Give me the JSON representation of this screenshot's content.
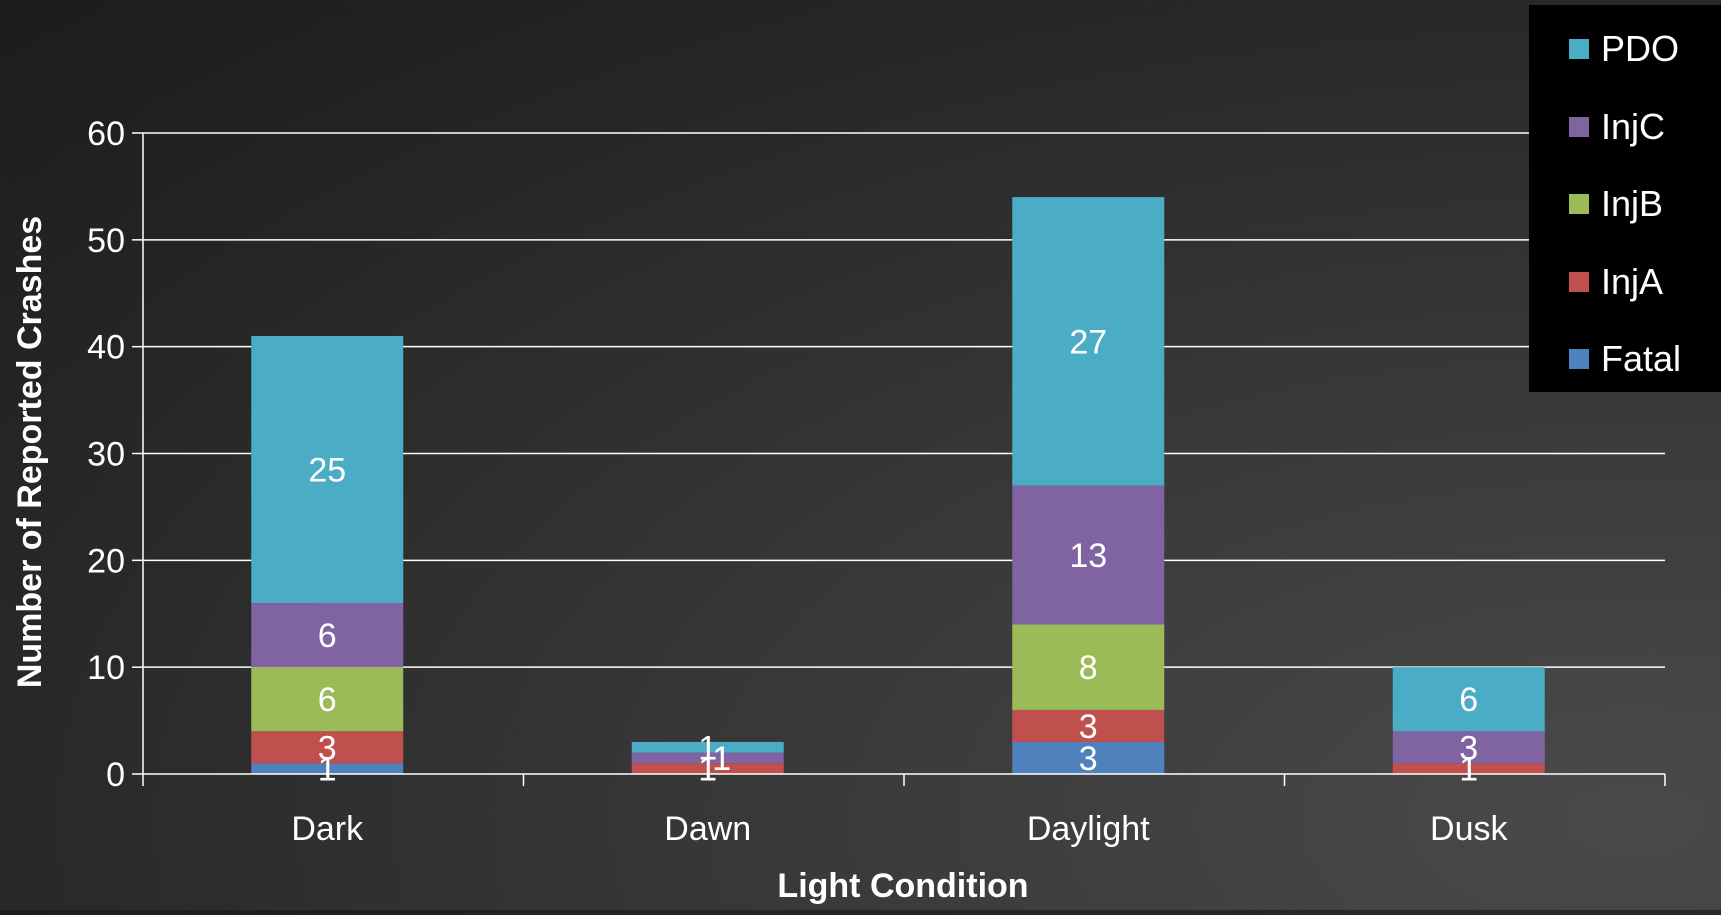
{
  "chart_data": {
    "type": "bar",
    "stacked": true,
    "title": "",
    "xlabel": "Light Condition",
    "ylabel": "Number of Reported Crashes",
    "ylim": [
      0,
      60
    ],
    "yticks": [
      "0",
      "10",
      "20",
      "30",
      "40",
      "50",
      "60"
    ],
    "grid": true,
    "legend_position": "top-right",
    "categories": [
      "Dark",
      "Dawn",
      "Daylight",
      "Dusk"
    ],
    "series": [
      {
        "name": "Fatal",
        "color": "#4f81bd",
        "values": [
          1,
          0,
          3,
          0
        ],
        "labels": [
          "1",
          "",
          "3",
          ""
        ]
      },
      {
        "name": "InjA",
        "color": "#c0504d",
        "values": [
          3,
          1,
          3,
          1
        ],
        "labels": [
          "3",
          "1",
          "3",
          "1"
        ]
      },
      {
        "name": "InjB",
        "color": "#9bbb59",
        "values": [
          6,
          0,
          8,
          0
        ],
        "labels": [
          "6",
          "",
          "8",
          ""
        ]
      },
      {
        "name": "InjC",
        "color": "#8064a2",
        "values": [
          6,
          1,
          13,
          3
        ],
        "labels": [
          "6",
          "1",
          "13",
          "3"
        ]
      },
      {
        "name": "PDO",
        "color": "#4bacc6",
        "values": [
          25,
          1,
          27,
          6
        ],
        "labels": [
          "25",
          "1",
          "27",
          "6"
        ]
      }
    ]
  }
}
